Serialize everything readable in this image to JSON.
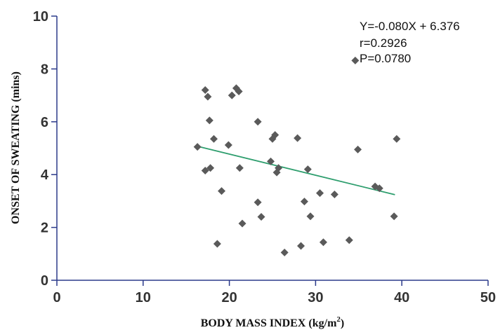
{
  "chart_data": {
    "type": "scatter",
    "xlabel": "BODY MASS INDEX (kg/m",
    "xlabel_superscript": "2",
    "xlabel_close": ")",
    "ylabel": "ONSET OF SWEATING (mins)",
    "xlim": [
      0,
      50
    ],
    "ylim": [
      0,
      10
    ],
    "x_ticks": [
      0,
      10,
      20,
      30,
      40,
      50
    ],
    "y_ticks": [
      0,
      2,
      4,
      6,
      8,
      10
    ],
    "grid": false,
    "annotations": [
      "Y=-0.080X + 6.376",
      "r=0.2926",
      "P=0.0780"
    ],
    "regression": {
      "slope": -0.08,
      "intercept": 6.376,
      "x_range": [
        16.5,
        39.2
      ]
    },
    "colors": {
      "points": "#5a5a5a",
      "regression_line": "#2e9e6e",
      "axis": "#2b3a8a"
    },
    "points": [
      [
        16.3,
        5.05
      ],
      [
        17.2,
        7.2
      ],
      [
        17.2,
        4.15
      ],
      [
        17.5,
        6.95
      ],
      [
        17.7,
        6.05
      ],
      [
        17.8,
        4.25
      ],
      [
        18.2,
        5.35
      ],
      [
        18.6,
        1.38
      ],
      [
        19.1,
        3.38
      ],
      [
        19.9,
        5.12
      ],
      [
        20.3,
        7.0
      ],
      [
        20.8,
        7.27
      ],
      [
        21.1,
        7.15
      ],
      [
        21.2,
        4.25
      ],
      [
        21.5,
        2.15
      ],
      [
        23.3,
        6.0
      ],
      [
        23.3,
        2.95
      ],
      [
        23.7,
        2.4
      ],
      [
        24.8,
        4.5
      ],
      [
        25.0,
        5.35
      ],
      [
        25.3,
        5.5
      ],
      [
        25.5,
        4.08
      ],
      [
        25.7,
        4.25
      ],
      [
        26.4,
        1.05
      ],
      [
        27.9,
        5.38
      ],
      [
        28.3,
        1.3
      ],
      [
        28.7,
        2.98
      ],
      [
        29.1,
        4.2
      ],
      [
        29.4,
        2.42
      ],
      [
        30.5,
        3.3
      ],
      [
        30.9,
        1.44
      ],
      [
        32.2,
        3.25
      ],
      [
        33.9,
        1.52
      ],
      [
        34.6,
        8.32
      ],
      [
        34.9,
        4.95
      ],
      [
        36.9,
        3.55
      ],
      [
        37.4,
        3.48
      ],
      [
        39.1,
        2.42
      ],
      [
        39.4,
        5.35
      ]
    ]
  }
}
